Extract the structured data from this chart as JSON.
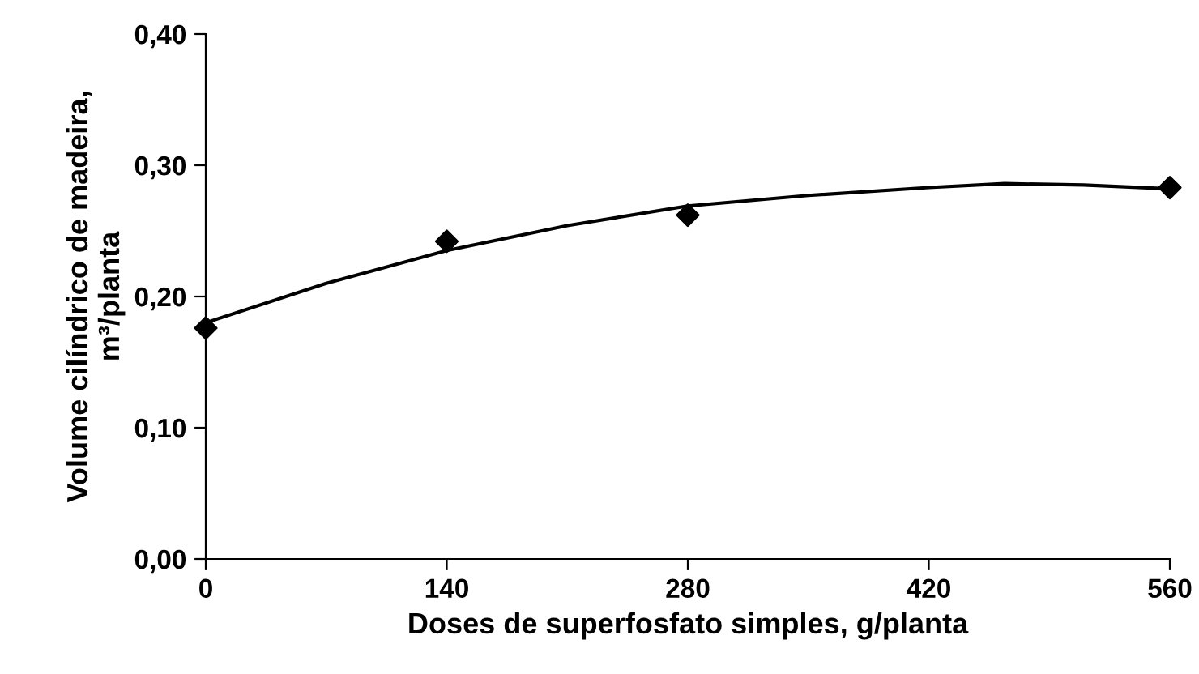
{
  "chart_data": {
    "type": "scatter",
    "xlabel": "Doses de superfosfato simples, g/planta",
    "ylabel": "Volume cilíndrico de madeira,\nm³/planta",
    "series": [
      {
        "color": "#000000",
        "marker": "diamond",
        "x": [
          0,
          140,
          280,
          560
        ],
        "values": [
          0.176,
          0.242,
          0.262,
          0.283
        ]
      },
      {
        "type": "line",
        "color": "#000000",
        "marker": "none",
        "x": [
          0,
          70,
          140,
          210,
          280,
          350,
          420,
          464,
          510,
          560
        ],
        "values": [
          0.18,
          0.21,
          0.235,
          0.254,
          0.269,
          0.277,
          0.283,
          0.286,
          0.285,
          0.282
        ]
      }
    ],
    "xlim": [
      0,
      560
    ],
    "xticks": [
      0,
      140,
      280,
      420,
      560
    ],
    "ylim": [
      0,
      0.4
    ],
    "yticks": [
      {
        "value": 0,
        "label": "0,00"
      },
      {
        "value": 0.1,
        "label": "0,10"
      },
      {
        "value": 0.2,
        "label": "0,20"
      },
      {
        "value": 0.3,
        "label": "0,30"
      },
      {
        "value": 0.4,
        "label": "0,40"
      }
    ],
    "grid": false,
    "legend": false
  }
}
